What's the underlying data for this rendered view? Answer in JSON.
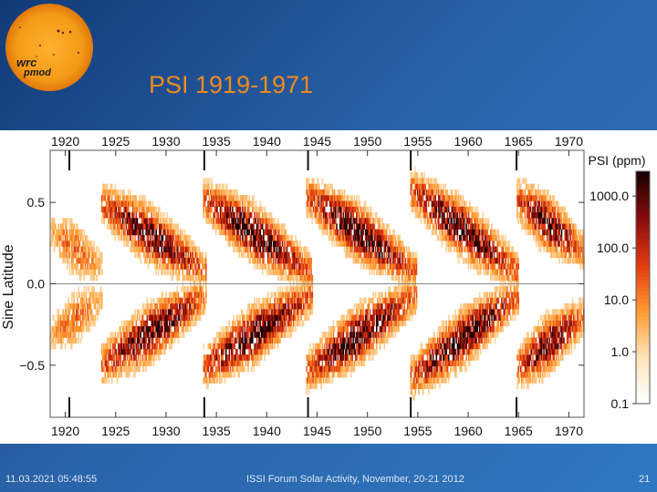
{
  "slide": {
    "title": "PSI 1919-1971",
    "logo_text_line1": "wrc",
    "logo_text_line2": "pmod",
    "footer_left": "11.03.2021 05:48:55",
    "footer_center": "ISSI Forum Solar Activity, November, 20-21 2012",
    "footer_right": "21",
    "background_color": "#1f5293",
    "title_color": "#f08a1e"
  },
  "chart_data": {
    "type": "heatmap",
    "title": "",
    "xlabel": "",
    "ylabel": "Sine Latitude",
    "x_ticks": [
      "1920",
      "1925",
      "1930",
      "1935",
      "1940",
      "1945",
      "1950",
      "1955",
      "1960",
      "1965",
      "1970"
    ],
    "y_ticks": [
      "0.5",
      "0.0",
      "−0.5"
    ],
    "xlim": [
      1918.5,
      1971.5
    ],
    "ylim": [
      -0.82,
      0.82
    ],
    "cycle_minima": [
      1920.4,
      1933.8,
      1944.1,
      1954.3,
      1964.8
    ],
    "colorbar": {
      "label": "PSI (ppm)",
      "tick_labels": [
        "1000.0",
        "100.0",
        "10.0",
        "1.0",
        "0.1"
      ],
      "scale": "log",
      "range": [
        0.1,
        3000
      ],
      "colors": [
        "#ffffff",
        "#ffe3b8",
        "#ff9a2e",
        "#e23a12",
        "#8a0c0c",
        "#1a0000"
      ]
    },
    "cycles": [
      {
        "start": 1918.5,
        "end": 1923.6,
        "lat_start": 0.32,
        "lat_end": 0.1,
        "peak": 0.45
      },
      {
        "start": 1923.5,
        "end": 1934.0,
        "lat_start": 0.5,
        "lat_end": 0.07,
        "peak": 0.95
      },
      {
        "start": 1933.6,
        "end": 1944.5,
        "lat_start": 0.52,
        "lat_end": 0.07,
        "peak": 1.0
      },
      {
        "start": 1943.9,
        "end": 1954.8,
        "lat_start": 0.54,
        "lat_end": 0.07,
        "peak": 1.0
      },
      {
        "start": 1954.2,
        "end": 1965.0,
        "lat_start": 0.58,
        "lat_end": 0.07,
        "peak": 1.0
      },
      {
        "start": 1964.7,
        "end": 1971.5,
        "lat_start": 0.52,
        "lat_end": 0.2,
        "peak": 0.9
      }
    ]
  }
}
